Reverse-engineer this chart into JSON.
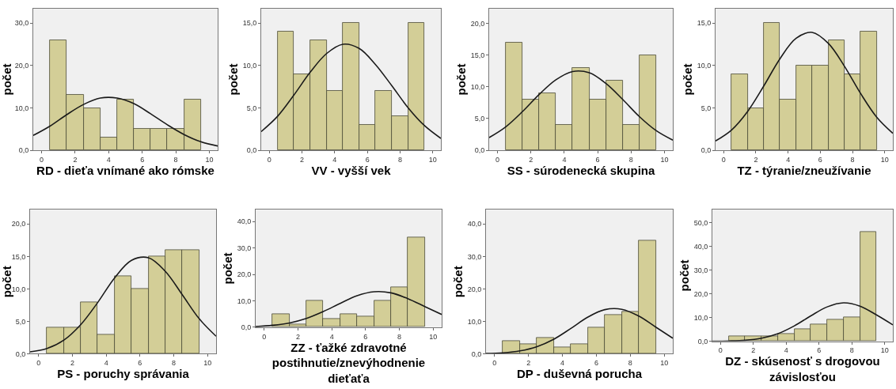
{
  "chart_data": [
    {
      "type": "histogram",
      "xlabel": "RD - dieťa vnímané ako rómske",
      "ylabel": "počet",
      "bins": [
        0.5,
        1.5,
        2.5,
        3.5,
        4.5,
        5.5,
        6.5,
        7.5,
        8.5,
        9.5
      ],
      "values": [
        26,
        13,
        10,
        3,
        12,
        5,
        5,
        5,
        12
      ],
      "color": "#d3ce97",
      "xlim": [
        -0.5,
        10.5
      ],
      "xticks": [
        0,
        2,
        4,
        6,
        8,
        10
      ],
      "ylim": [
        0,
        33.4
      ],
      "yticks": [
        {
          "value": 0,
          "label": "0,0"
        },
        {
          "value": 10,
          "label": "10,0"
        },
        {
          "value": 20,
          "label": "20,0"
        },
        {
          "value": 30,
          "label": "30,0"
        }
      ],
      "grid": false,
      "series": [
        {
          "type": "line",
          "color": "#1a1a1a",
          "x": [
            -0.5,
            0.5,
            1.5,
            2.5,
            3.5,
            4.5,
            5.5,
            6.5,
            7.5,
            8.5,
            9.5,
            10.5
          ],
          "values": [
            3.5,
            5.7,
            8.4,
            10.8,
            12.3,
            12.3,
            11.0,
            8.6,
            6.0,
            3.7,
            2.0,
            1.0
          ]
        }
      ]
    },
    {
      "type": "histogram",
      "xlabel": "VV - vyšší vek",
      "ylabel": "počet",
      "bins": [
        0.5,
        1.5,
        2.5,
        3.5,
        4.5,
        5.5,
        6.5,
        7.5,
        8.5,
        9.5
      ],
      "values": [
        14,
        9,
        13,
        7,
        15,
        3,
        7,
        4,
        15
      ],
      "color": "#d3ce97",
      "xlim": [
        -0.5,
        10.5
      ],
      "xticks": [
        0,
        2,
        4,
        6,
        8,
        10
      ],
      "ylim": [
        0,
        16.7
      ],
      "yticks": [
        {
          "value": 0,
          "label": "0,0"
        },
        {
          "value": 5,
          "label": "5,0"
        },
        {
          "value": 10,
          "label": "10,0"
        },
        {
          "value": 15,
          "label": "15,0"
        }
      ],
      "grid": false,
      "series": [
        {
          "type": "line",
          "color": "#1a1a1a",
          "x": [
            -0.5,
            0.5,
            1.5,
            2.5,
            3.5,
            4.5,
            5.5,
            6.5,
            7.5,
            8.5,
            9.5,
            10.5
          ],
          "values": [
            2.2,
            4.0,
            6.5,
            9.2,
            11.4,
            12.5,
            12.0,
            10.1,
            7.6,
            5.0,
            2.9,
            1.4
          ]
        }
      ]
    },
    {
      "type": "histogram",
      "xlabel": "SS - súrodenecká skupina",
      "ylabel": "počet",
      "bins": [
        0.5,
        1.5,
        2.5,
        3.5,
        4.5,
        5.5,
        6.5,
        7.5,
        8.5,
        9.5
      ],
      "values": [
        17,
        8,
        9,
        4,
        13,
        8,
        11,
        4,
        15
      ],
      "color": "#d3ce97",
      "xlim": [
        -0.5,
        10.5
      ],
      "xticks": [
        0,
        2,
        4,
        6,
        8,
        10
      ],
      "ylim": [
        0,
        22.3
      ],
      "yticks": [
        {
          "value": 0,
          "label": "0,0"
        },
        {
          "value": 5,
          "label": "5,0"
        },
        {
          "value": 10,
          "label": "10,0"
        },
        {
          "value": 15,
          "label": "15,0"
        },
        {
          "value": 20,
          "label": "20,0"
        }
      ],
      "grid": false,
      "series": [
        {
          "type": "line",
          "color": "#1a1a1a",
          "x": [
            -0.5,
            0.5,
            1.5,
            2.5,
            3.5,
            4.5,
            5.5,
            6.5,
            7.5,
            8.5,
            9.5,
            10.5
          ],
          "values": [
            2.0,
            3.7,
            6.1,
            8.8,
            11.1,
            12.4,
            12.2,
            10.5,
            8.0,
            5.3,
            3.1,
            1.6
          ]
        }
      ]
    },
    {
      "type": "histogram",
      "xlabel": "TZ - týranie/zneužívanie",
      "ylabel": "počet",
      "bins": [
        0.5,
        1.5,
        2.5,
        3.5,
        4.5,
        5.5,
        6.5,
        7.5,
        8.5,
        9.5
      ],
      "values": [
        9,
        5,
        15,
        6,
        10,
        10,
        13,
        9,
        14
      ],
      "color": "#d3ce97",
      "xlim": [
        -0.5,
        10.5
      ],
      "xticks": [
        0,
        2,
        4,
        6,
        8,
        10
      ],
      "ylim": [
        0,
        16.7
      ],
      "yticks": [
        {
          "value": 0,
          "label": "0,0"
        },
        {
          "value": 5,
          "label": "5,0"
        },
        {
          "value": 10,
          "label": "10,0"
        },
        {
          "value": 15,
          "label": "15,0"
        }
      ],
      "grid": false,
      "series": [
        {
          "type": "line",
          "color": "#1a1a1a",
          "x": [
            -0.5,
            0.5,
            1.5,
            2.5,
            3.5,
            4.5,
            5.5,
            6.5,
            7.5,
            8.5,
            9.5,
            10.5
          ],
          "values": [
            1.1,
            2.4,
            4.6,
            7.6,
            10.8,
            13.2,
            13.9,
            12.6,
            9.9,
            6.7,
            3.9,
            2.0
          ]
        }
      ]
    },
    {
      "type": "histogram",
      "xlabel": "PS - poruchy správania",
      "ylabel": "počet",
      "bins": [
        0.5,
        1.5,
        2.5,
        3.5,
        4.5,
        5.5,
        6.5,
        7.5,
        8.5,
        9.5
      ],
      "values": [
        4,
        4,
        8,
        3,
        12,
        10,
        15,
        16,
        16
      ],
      "color": "#d3ce97",
      "xlim": [
        -0.5,
        10.5
      ],
      "xticks": [
        0,
        2,
        4,
        6,
        8,
        10
      ],
      "ylim": [
        0,
        22.2
      ],
      "yticks": [
        {
          "value": 0,
          "label": "0,0"
        },
        {
          "value": 5,
          "label": "5,0"
        },
        {
          "value": 10,
          "label": "10,0"
        },
        {
          "value": 15,
          "label": "15,0"
        },
        {
          "value": 20,
          "label": "20,0"
        }
      ],
      "grid": false,
      "series": [
        {
          "type": "line",
          "color": "#1a1a1a",
          "x": [
            -0.5,
            0.5,
            1.5,
            2.5,
            3.5,
            4.5,
            5.5,
            6.5,
            7.5,
            8.5,
            9.5,
            10.5
          ],
          "values": [
            0.3,
            0.8,
            2.1,
            4.5,
            7.9,
            11.7,
            14.4,
            14.8,
            12.7,
            9.1,
            5.4,
            2.7
          ]
        }
      ]
    },
    {
      "type": "histogram",
      "xlabel": "ZZ - ťažké zdravotné postihnutie/znevýhodnenie dieťaťa",
      "ylabel": "počet",
      "bins": [
        0.5,
        1.5,
        2.5,
        3.5,
        4.5,
        5.5,
        6.5,
        7.5,
        8.5,
        9.5
      ],
      "values": [
        5,
        1,
        10,
        3,
        5,
        4,
        10,
        15,
        34
      ],
      "color": "#d3ce97",
      "xlim": [
        -0.5,
        10.5
      ],
      "xticks": [
        0,
        2,
        4,
        6,
        8,
        10
      ],
      "ylim": [
        0,
        44.5
      ],
      "yticks": [
        {
          "value": 0,
          "label": "0,0"
        },
        {
          "value": 10,
          "label": "10,0"
        },
        {
          "value": 20,
          "label": "20,0"
        },
        {
          "value": 30,
          "label": "30,0"
        },
        {
          "value": 40,
          "label": "40,0"
        }
      ],
      "grid": false,
      "series": [
        {
          "type": "line",
          "color": "#1a1a1a",
          "x": [
            -0.5,
            0.5,
            1.5,
            2.5,
            3.5,
            4.5,
            5.5,
            6.5,
            7.5,
            8.5,
            9.5,
            10.5
          ],
          "values": [
            0.2,
            0.7,
            1.6,
            3.3,
            5.9,
            9.0,
            11.9,
            13.4,
            13.0,
            10.8,
            7.8,
            4.8
          ]
        }
      ]
    },
    {
      "type": "histogram",
      "xlabel": "DP - duševná porucha",
      "ylabel": "počet",
      "bins": [
        0.5,
        1.5,
        2.5,
        3.5,
        4.5,
        5.5,
        6.5,
        7.5,
        8.5,
        9.5
      ],
      "values": [
        4,
        3,
        5,
        2,
        3,
        8,
        12,
        13,
        35
      ],
      "color": "#d3ce97",
      "xlim": [
        -0.5,
        10.5
      ],
      "xticks": [
        0,
        2,
        4,
        6,
        8,
        10
      ],
      "ylim": [
        0,
        44.4
      ],
      "yticks": [
        {
          "value": 0,
          "label": "0,0"
        },
        {
          "value": 10,
          "label": "10,0"
        },
        {
          "value": 20,
          "label": "20,0"
        },
        {
          "value": 30,
          "label": "30,0"
        },
        {
          "value": 40,
          "label": "40,0"
        }
      ],
      "grid": false,
      "series": [
        {
          "type": "line",
          "color": "#1a1a1a",
          "x": [
            -0.5,
            0.5,
            1.5,
            2.5,
            3.5,
            4.5,
            5.5,
            6.5,
            7.5,
            8.5,
            9.5,
            10.5
          ],
          "values": [
            0.1,
            0.3,
            0.9,
            2.2,
            4.5,
            7.8,
            11.3,
            13.6,
            13.7,
            11.6,
            8.2,
            4.8
          ]
        }
      ]
    },
    {
      "type": "histogram",
      "xlabel": "DZ - skúsenosť s drogovou závislosťou",
      "ylabel": "počet",
      "bins": [
        0.5,
        1.5,
        2.5,
        3.5,
        4.5,
        5.5,
        6.5,
        7.5,
        8.5,
        9.5
      ],
      "values": [
        2,
        2,
        2,
        3,
        5,
        7,
        9,
        10,
        46
      ],
      "color": "#d3ce97",
      "xlim": [
        -0.5,
        10.5
      ],
      "xticks": [
        0,
        2,
        4,
        6,
        8,
        10
      ],
      "ylim": [
        0,
        55.5
      ],
      "yticks": [
        {
          "value": 0,
          "label": "0,0"
        },
        {
          "value": 10,
          "label": "10,0"
        },
        {
          "value": 20,
          "label": "20,0"
        },
        {
          "value": 30,
          "label": "30,0"
        },
        {
          "value": 40,
          "label": "40,0"
        },
        {
          "value": 50,
          "label": "50,0"
        }
      ],
      "grid": false,
      "series": [
        {
          "type": "line",
          "color": "#1a1a1a",
          "x": [
            -0.5,
            0.5,
            1.5,
            2.5,
            3.5,
            4.5,
            5.5,
            6.5,
            7.5,
            8.5,
            9.5,
            10.5
          ],
          "values": [
            0.0,
            0.1,
            0.4,
            1.3,
            3.2,
            6.5,
            10.7,
            14.5,
            16.2,
            14.8,
            11.1,
            6.9
          ]
        }
      ]
    }
  ]
}
